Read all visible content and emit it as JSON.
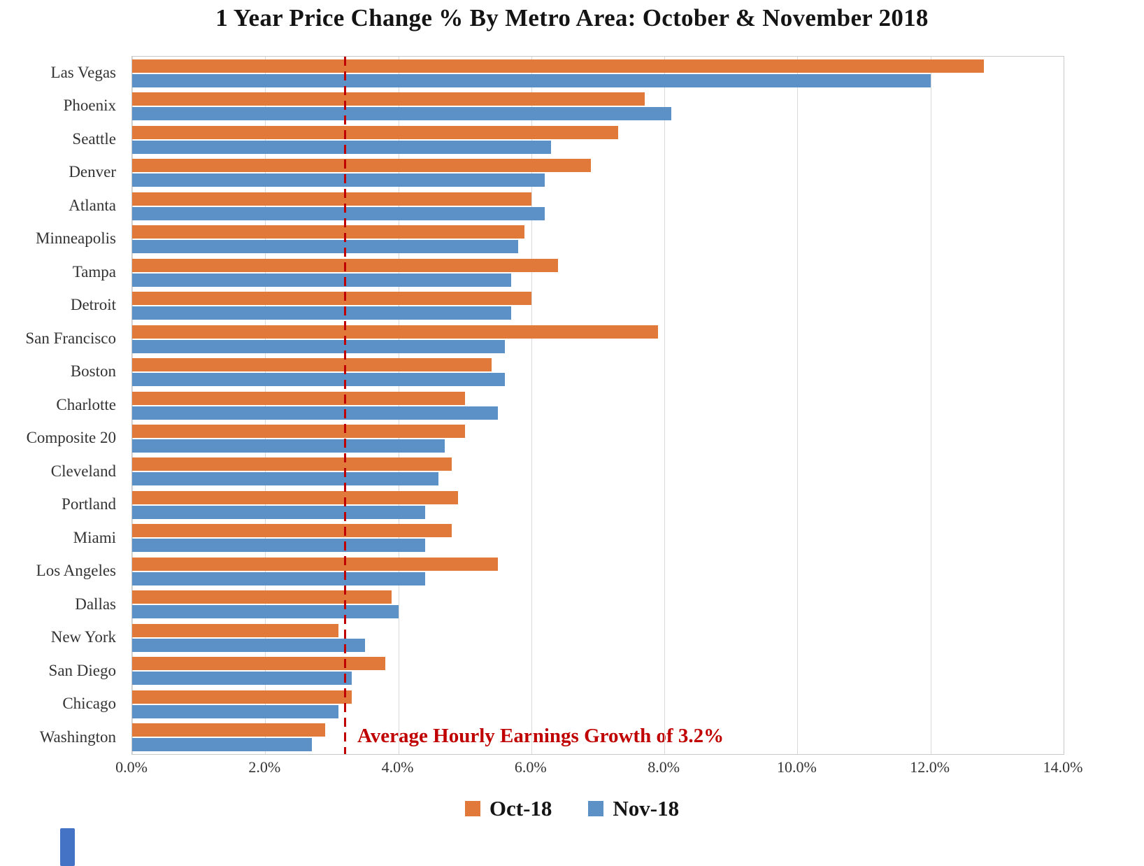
{
  "chart_data": {
    "type": "bar",
    "orientation": "horizontal",
    "title": "1 Year Price Change % By Metro Area: October & November 2018",
    "categories": [
      "Las Vegas",
      "Phoenix",
      "Seattle",
      "Denver",
      "Atlanta",
      "Minneapolis",
      "Tampa",
      "Detroit",
      "San Francisco",
      "Boston",
      "Charlotte",
      "Composite 20",
      "Cleveland",
      "Portland",
      "Miami",
      "Los Angeles",
      "Dallas",
      "New York",
      "San Diego",
      "Chicago",
      "Washington"
    ],
    "series": [
      {
        "name": "Oct-18",
        "color": "#E0793A",
        "values": [
          12.8,
          7.7,
          7.3,
          6.9,
          6.0,
          5.9,
          6.4,
          6.0,
          7.9,
          5.4,
          5.0,
          5.0,
          4.8,
          4.9,
          4.8,
          5.5,
          3.9,
          3.1,
          3.8,
          3.3,
          2.9
        ]
      },
      {
        "name": "Nov-18",
        "color": "#5B91C6",
        "values": [
          12.0,
          8.1,
          6.3,
          6.2,
          6.2,
          5.8,
          5.7,
          5.7,
          5.6,
          5.6,
          5.5,
          4.7,
          4.6,
          4.4,
          4.4,
          4.4,
          4.0,
          3.5,
          3.3,
          3.1,
          2.7
        ]
      }
    ],
    "x_ticks": [
      {
        "value": 0,
        "label": "0.0%"
      },
      {
        "value": 2,
        "label": "2.0%"
      },
      {
        "value": 4,
        "label": "4.0%"
      },
      {
        "value": 6,
        "label": "6.0%"
      },
      {
        "value": 8,
        "label": "8.0%"
      },
      {
        "value": 10,
        "label": "10.0%"
      },
      {
        "value": 12,
        "label": "12.0%"
      },
      {
        "value": 14,
        "label": "14.0%"
      }
    ],
    "xlim": [
      0,
      14
    ],
    "grid": true,
    "legend_position": "bottom",
    "reference_line": {
      "value": 3.2,
      "color": "#C00000",
      "style": "dashed",
      "label": "Average Hourly Earnings Growth of 3.2%"
    }
  }
}
